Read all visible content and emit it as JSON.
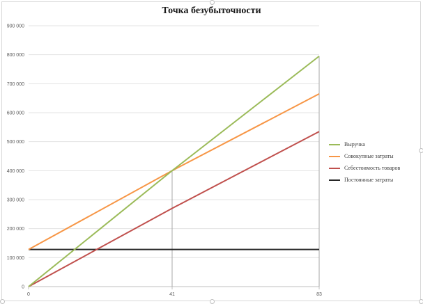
{
  "chart_data": {
    "type": "line",
    "title": "Точка безубыточности",
    "x_ticks": [
      "0",
      "41",
      "83"
    ],
    "y_ticks": [
      "0",
      "100 000",
      "200 000",
      "300 000",
      "400 000",
      "500 000",
      "600 000",
      "700 000",
      "800 000",
      "900 000"
    ],
    "xlim": [
      0,
      83
    ],
    "ylim": [
      0,
      900000
    ],
    "grid": true,
    "legend_position": "right",
    "series": [
      {
        "name": "Выручка",
        "color": "#9bbb59",
        "x": [
          0,
          41,
          83
        ],
        "y": [
          0,
          400000,
          795000
        ]
      },
      {
        "name": "Совокупные затраты",
        "color": "#f79646",
        "x": [
          0,
          41,
          83
        ],
        "y": [
          128000,
          400000,
          665000
        ]
      },
      {
        "name": "Себестоимость товаров",
        "color": "#c0504d",
        "x": [
          0,
          41,
          83
        ],
        "y": [
          0,
          270000,
          535000
        ]
      },
      {
        "name": "Постоянные затраты",
        "color": "#262626",
        "x": [
          0,
          41,
          83
        ],
        "y": [
          128000,
          128000,
          128000
        ]
      }
    ]
  }
}
